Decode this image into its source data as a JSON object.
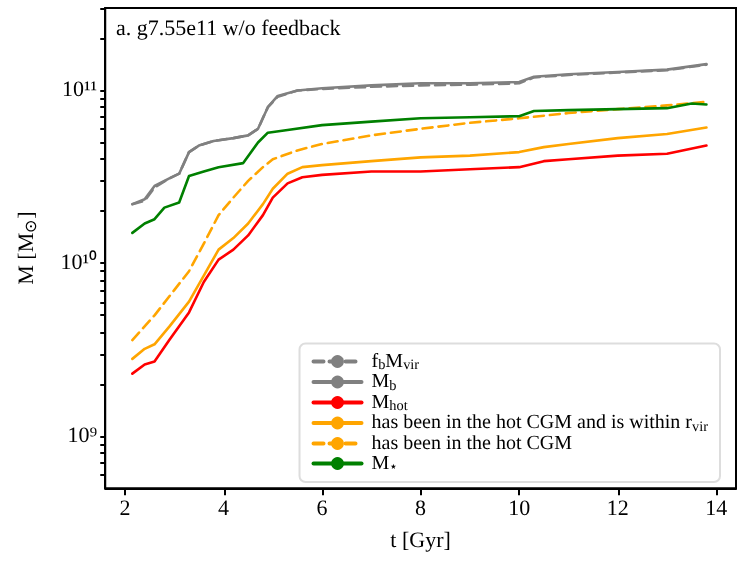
{
  "chart_data": {
    "type": "line",
    "xlabel": "t [Gyr]",
    "ylabel": "M [M$_{⊙}$]",
    "annotations": [
      "a. g7.55e11 w/o feedback"
    ],
    "log": "y",
    "xlim": [
      1.6,
      14.4
    ],
    "xticks": [
      2,
      4,
      6,
      8,
      10,
      12,
      14
    ],
    "ylim": [
      500000000.0,
      300000000000.0
    ],
    "yticks": [
      {
        "value": 600000000.0,
        "label": null
      },
      {
        "value": 700000000.0,
        "label": null
      },
      {
        "value": 800000000.0,
        "label": null
      },
      {
        "value": 900000000.0,
        "label": null
      },
      {
        "value": 1000000000.0,
        "label": "10⁹"
      },
      {
        "value": 2000000000.0,
        "label": null
      },
      {
        "value": 3000000000.0,
        "label": null
      },
      {
        "value": 4000000000.0,
        "label": null
      },
      {
        "value": 5000000000.0,
        "label": null
      },
      {
        "value": 6000000000.0,
        "label": null
      },
      {
        "value": 7000000000.0,
        "label": null
      },
      {
        "value": 8000000000.0,
        "label": null
      },
      {
        "value": 9000000000.0,
        "label": null
      },
      {
        "value": 10000000000.0,
        "label": "10¹⁰"
      },
      {
        "value": 20000000000.0,
        "label": null
      },
      {
        "value": 30000000000.0,
        "label": null
      },
      {
        "value": 40000000000.0,
        "label": null
      },
      {
        "value": 50000000000.0,
        "label": null
      },
      {
        "value": 60000000000.0,
        "label": null
      },
      {
        "value": 70000000000.0,
        "label": null
      },
      {
        "value": 80000000000.0,
        "label": null
      },
      {
        "value": 90000000000.0,
        "label": null
      },
      {
        "value": 100000000000.0,
        "label": "10¹¹"
      },
      {
        "value": 200000000000.0,
        "label": null
      },
      {
        "value": 300000000000.0,
        "label": null
      }
    ],
    "grid": false,
    "legend": "bottom right",
    "marker": "none",
    "series": [
      {
        "name": "f$_{b}$M$_{vir}$",
        "color": "#808080",
        "line_style": "dashed",
        "x": [
          2.15,
          2.4,
          2.6,
          2.9,
          3.1,
          3.3,
          3.5,
          3.8,
          4.2,
          4.5,
          4.7,
          4.9,
          5.1,
          5.5,
          6,
          7,
          8,
          9,
          10,
          10.3,
          11,
          12,
          13,
          13.8
        ],
        "values": [
          22000000000.0,
          23000000000.0,
          27500000000.0,
          31000000000.0,
          33000000000.0,
          44000000000.0,
          48000000000.0,
          51000000000.0,
          53000000000.0,
          55000000000.0,
          60000000000.0,
          80000000000.0,
          92000000000.0,
          100000000000.0,
          102000000000.0,
          105000000000.0,
          107000000000.0,
          108000000000.0,
          110000000000.0,
          119000000000.0,
          123000000000.0,
          127000000000.0,
          131000000000.0,
          141000000000.0
        ]
      },
      {
        "name": "M$_{b}$",
        "color": "#808080",
        "line_style": "solid",
        "x": [
          2.15,
          2.4,
          2.6,
          2.9,
          3.1,
          3.3,
          3.5,
          3.8,
          4.2,
          4.5,
          4.7,
          4.9,
          5.1,
          5.5,
          6,
          7,
          8,
          9,
          10,
          10.3,
          11,
          12,
          13,
          13.8
        ],
        "values": [
          22000000000.0,
          23500000000.0,
          28000000000.0,
          31000000000.0,
          33000000000.0,
          44000000000.0,
          48000000000.0,
          51000000000.0,
          53000000000.0,
          55000000000.0,
          60000000000.0,
          80000000000.0,
          93000000000.0,
          100000000000.0,
          103000000000.0,
          107000000000.0,
          110000000000.0,
          110000000000.0,
          112000000000.0,
          120000000000.0,
          124000000000.0,
          128000000000.0,
          132000000000.0,
          142000000000.0
        ]
      },
      {
        "name": "M$_{hot}$",
        "color": "#ff0000",
        "line_style": "solid",
        "x": [
          2.15,
          2.4,
          2.6,
          2.9,
          3.3,
          3.6,
          3.9,
          4.2,
          4.5,
          4.8,
          5.0,
          5.3,
          5.6,
          6,
          7,
          8,
          9,
          10,
          10.5,
          11,
          12,
          13,
          13.8
        ],
        "values": [
          2300000000.0,
          2600000000.0,
          2700000000.0,
          3600000000.0,
          5200000000.0,
          7800000000.0,
          10500000000.0,
          12000000000.0,
          14500000000.0,
          19000000000.0,
          24000000000.0,
          29000000000.0,
          31500000000.0,
          32500000000.0,
          34000000000.0,
          34000000000.0,
          35000000000.0,
          36000000000.0,
          39000000000.0,
          40000000000.0,
          42000000000.0,
          43000000000.0,
          48000000000.0
        ]
      },
      {
        "name": "has been in the hot CGM and is within r$_{vir}$",
        "color": "#ffa500",
        "line_style": "solid",
        "x": [
          2.15,
          2.4,
          2.6,
          2.9,
          3.3,
          3.6,
          3.9,
          4.2,
          4.5,
          4.8,
          5.0,
          5.3,
          5.6,
          6,
          7,
          8,
          9,
          10,
          10.5,
          11,
          12,
          13,
          13.8
        ],
        "values": [
          2800000000.0,
          3200000000.0,
          3400000000.0,
          4300000000.0,
          6000000000.0,
          8500000000.0,
          12000000000.0,
          14000000000.0,
          17000000000.0,
          22000000000.0,
          27000000000.0,
          33000000000.0,
          36000000000.0,
          37000000000.0,
          39000000000.0,
          41000000000.0,
          42000000000.0,
          44000000000.0,
          47000000000.0,
          49000000000.0,
          53000000000.0,
          56000000000.0,
          61000000000.0
        ]
      },
      {
        "name": "has been in the hot CGM",
        "color": "#ffa500",
        "line_style": "dashed",
        "x": [
          2.15,
          2.6,
          3.0,
          3.3,
          3.6,
          3.9,
          4.2,
          4.5,
          4.8,
          5.0,
          5.5,
          6,
          7,
          8,
          9,
          10,
          11,
          12,
          13,
          13.8
        ],
        "values": [
          3600000000.0,
          5000000000.0,
          7000000000.0,
          9000000000.0,
          13000000000.0,
          19000000000.0,
          24000000000.0,
          30000000000.0,
          36000000000.0,
          40000000000.0,
          45000000000.0,
          49000000000.0,
          55000000000.0,
          60000000000.0,
          65000000000.0,
          69000000000.0,
          74000000000.0,
          78000000000.0,
          82000000000.0,
          86000000000.0
        ]
      },
      {
        "name": "M$_{⋆}$",
        "color": "#008000",
        "line_style": "solid",
        "x": [
          2.15,
          2.4,
          2.6,
          2.8,
          3.1,
          3.3,
          3.6,
          3.9,
          4.4,
          4.7,
          4.9,
          5.3,
          6,
          7,
          8,
          9,
          10,
          10.3,
          11,
          12,
          13,
          13.5,
          13.8
        ],
        "values": [
          15000000000.0,
          17000000000.0,
          18000000000.0,
          21000000000.0,
          22500000000.0,
          32000000000.0,
          34000000000.0,
          36000000000.0,
          38000000000.0,
          50000000000.0,
          57000000000.0,
          59000000000.0,
          63000000000.0,
          66000000000.0,
          69000000000.0,
          70000000000.0,
          71000000000.0,
          76000000000.0,
          77000000000.0,
          78000000000.0,
          79000000000.0,
          84000000000.0,
          83000000000.0
        ]
      }
    ]
  }
}
